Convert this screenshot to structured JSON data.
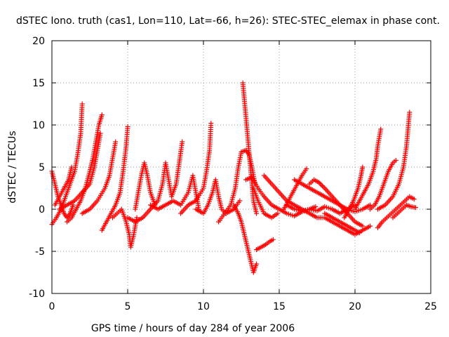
{
  "chart_data": {
    "type": "scatter",
    "title": "dSTEC Iono. truth (cas1, Lon=110, Lat=-66, h=26): STEC-STEC_elemax in phase cont.",
    "xlabel": "GPS time / hours of day 284 of year 2006",
    "ylabel": "dSTEC  / TECUs",
    "xlim": [
      0,
      25
    ],
    "ylim": [
      -10,
      20
    ],
    "xticks": [
      0,
      5,
      10,
      15,
      20,
      25
    ],
    "yticks": [
      -10,
      -5,
      0,
      5,
      10,
      15,
      20
    ],
    "grid": true,
    "marker": "plus",
    "color": "#ff0000",
    "arcs": [
      [
        [
          0.0,
          4.5
        ],
        [
          0.2,
          3.0
        ],
        [
          0.4,
          1.5
        ],
        [
          0.6,
          0.5
        ],
        [
          0.8,
          -0.5
        ],
        [
          1.0,
          -1.0
        ],
        [
          1.2,
          -0.5
        ],
        [
          1.4,
          0.5
        ]
      ],
      [
        [
          0.0,
          -1.8
        ],
        [
          0.3,
          -1.0
        ],
        [
          0.6,
          0.0
        ],
        [
          0.9,
          1.5
        ],
        [
          1.2,
          3.0
        ],
        [
          1.5,
          4.5
        ],
        [
          1.7,
          6.5
        ],
        [
          1.9,
          9.0
        ],
        [
          2.0,
          12.5
        ]
      ],
      [
        [
          0.2,
          0.5
        ],
        [
          0.5,
          1.5
        ],
        [
          0.8,
          2.5
        ],
        [
          1.1,
          3.5
        ],
        [
          1.3,
          5.0
        ]
      ],
      [
        [
          1.0,
          -1.5
        ],
        [
          1.3,
          -1.0
        ],
        [
          1.6,
          0.0
        ],
        [
          1.9,
          1.0
        ],
        [
          2.2,
          2.5
        ],
        [
          2.5,
          4.5
        ],
        [
          2.7,
          6.0
        ],
        [
          2.9,
          8.0
        ],
        [
          3.1,
          10.0
        ],
        [
          3.3,
          11.2
        ]
      ],
      [
        [
          0.5,
          0.0
        ],
        [
          1.0,
          0.5
        ],
        [
          1.5,
          1.0
        ],
        [
          2.0,
          2.0
        ],
        [
          2.5,
          3.0
        ],
        [
          2.8,
          5.0
        ],
        [
          3.0,
          7.0
        ],
        [
          3.2,
          9.0
        ]
      ],
      [
        [
          2.0,
          -0.5
        ],
        [
          2.5,
          0.0
        ],
        [
          3.0,
          1.0
        ],
        [
          3.5,
          2.5
        ],
        [
          3.8,
          4.0
        ],
        [
          4.0,
          6.0
        ],
        [
          4.2,
          8.0
        ]
      ],
      [
        [
          3.3,
          -2.5
        ],
        [
          3.6,
          -1.5
        ],
        [
          3.9,
          -0.5
        ],
        [
          4.2,
          0.5
        ],
        [
          4.5,
          2.0
        ],
        [
          4.7,
          4.5
        ],
        [
          4.9,
          7.5
        ],
        [
          5.0,
          9.8
        ]
      ],
      [
        [
          4.0,
          -1.0
        ],
        [
          4.3,
          -0.5
        ],
        [
          4.6,
          0.0
        ],
        [
          4.9,
          -1.5
        ],
        [
          5.1,
          -3.0
        ],
        [
          5.2,
          -4.5
        ],
        [
          5.4,
          -3.0
        ],
        [
          5.6,
          -1.0
        ]
      ],
      [
        [
          5.5,
          0.0
        ],
        [
          5.7,
          2.0
        ],
        [
          5.9,
          4.0
        ],
        [
          6.1,
          5.5
        ],
        [
          6.3,
          4.0
        ],
        [
          6.5,
          2.0
        ],
        [
          6.8,
          0.5
        ]
      ],
      [
        [
          5.0,
          -1.0
        ],
        [
          5.5,
          -1.5
        ],
        [
          6.0,
          -1.0
        ],
        [
          6.5,
          0.0
        ],
        [
          7.0,
          1.0
        ],
        [
          7.3,
          3.0
        ],
        [
          7.5,
          5.5
        ],
        [
          7.7,
          3.5
        ],
        [
          7.9,
          1.5
        ],
        [
          8.2,
          3.0
        ],
        [
          8.4,
          5.5
        ],
        [
          8.6,
          8.0
        ]
      ],
      [
        [
          6.5,
          0.5
        ],
        [
          7.0,
          0.0
        ],
        [
          7.5,
          0.5
        ],
        [
          8.0,
          1.0
        ],
        [
          8.5,
          0.5
        ],
        [
          9.0,
          2.0
        ],
        [
          9.3,
          4.0
        ],
        [
          9.5,
          2.0
        ],
        [
          9.7,
          0.0
        ]
      ],
      [
        [
          8.5,
          -0.5
        ],
        [
          9.0,
          0.5
        ],
        [
          9.5,
          1.0
        ],
        [
          10.0,
          2.5
        ],
        [
          10.2,
          4.5
        ],
        [
          10.4,
          7.0
        ],
        [
          10.5,
          10.2
        ]
      ],
      [
        [
          9.5,
          0.0
        ],
        [
          10.0,
          -0.5
        ],
        [
          10.3,
          0.5
        ],
        [
          10.6,
          2.0
        ],
        [
          10.8,
          3.5
        ],
        [
          11.0,
          1.5
        ],
        [
          11.2,
          0.0
        ],
        [
          11.5,
          -0.5
        ],
        [
          12.0,
          0.0
        ],
        [
          12.4,
          1.0
        ]
      ],
      [
        [
          11.0,
          -1.5
        ],
        [
          11.4,
          -0.5
        ],
        [
          11.8,
          0.5
        ],
        [
          12.1,
          2.5
        ],
        [
          12.3,
          5.0
        ],
        [
          12.5,
          6.8
        ],
        [
          12.8,
          7.0
        ],
        [
          13.0,
          6.5
        ],
        [
          13.2,
          5.0
        ],
        [
          13.4,
          3.0
        ]
      ],
      [
        [
          12.6,
          15.0
        ],
        [
          12.7,
          13.0
        ],
        [
          12.8,
          11.0
        ],
        [
          12.9,
          9.0
        ],
        [
          13.0,
          7.0
        ],
        [
          13.1,
          5.0
        ],
        [
          13.2,
          3.0
        ],
        [
          13.3,
          1.0
        ],
        [
          13.5,
          -0.5
        ]
      ],
      [
        [
          12.0,
          0.5
        ],
        [
          12.3,
          -0.5
        ],
        [
          12.5,
          -1.5
        ],
        [
          12.7,
          -3.0
        ],
        [
          12.9,
          -4.5
        ],
        [
          13.1,
          -6.0
        ],
        [
          13.3,
          -7.5
        ],
        [
          13.5,
          -6.5
        ]
      ],
      [
        [
          12.8,
          3.5
        ],
        [
          13.2,
          3.8
        ],
        [
          13.6,
          2.5
        ],
        [
          14.0,
          1.5
        ],
        [
          14.5,
          0.5
        ],
        [
          15.0,
          0.0
        ],
        [
          15.5,
          -0.5
        ],
        [
          16.0,
          -0.8
        ],
        [
          16.5,
          -0.3
        ],
        [
          17.0,
          0.0
        ],
        [
          17.5,
          -0.2
        ],
        [
          18.0,
          0.3
        ],
        [
          18.5,
          0.0
        ],
        [
          19.0,
          -0.5
        ],
        [
          19.5,
          0.0
        ],
        [
          20.0,
          0.5
        ]
      ],
      [
        [
          13.5,
          -4.8
        ],
        [
          13.8,
          -4.5
        ],
        [
          14.1,
          -4.2
        ],
        [
          14.4,
          -3.8
        ],
        [
          14.6,
          -3.6
        ]
      ],
      [
        [
          13.3,
          2.5
        ],
        [
          13.6,
          1.0
        ],
        [
          14.0,
          -0.5
        ],
        [
          14.5,
          -1.0
        ],
        [
          14.9,
          -0.5
        ]
      ],
      [
        [
          14.0,
          4.0
        ],
        [
          14.5,
          3.0
        ],
        [
          15.0,
          2.0
        ],
        [
          15.5,
          1.0
        ],
        [
          16.0,
          0.5
        ],
        [
          16.5,
          0.0
        ],
        [
          17.0,
          -0.5
        ],
        [
          17.5,
          -1.0
        ],
        [
          18.0,
          -1.0
        ],
        [
          18.5,
          -1.5
        ],
        [
          19.0,
          -2.0
        ],
        [
          19.5,
          -2.5
        ],
        [
          20.0,
          -3.0
        ],
        [
          20.5,
          -2.5
        ],
        [
          21.0,
          -2.0
        ]
      ],
      [
        [
          15.3,
          0.0
        ],
        [
          15.6,
          1.0
        ],
        [
          15.9,
          2.0
        ],
        [
          16.2,
          3.0
        ],
        [
          16.5,
          4.0
        ],
        [
          16.8,
          4.8
        ]
      ],
      [
        [
          15.5,
          0.5
        ],
        [
          16.0,
          0.0
        ],
        [
          16.5,
          -0.2
        ],
        [
          17.0,
          0.0
        ],
        [
          17.4,
          0.3
        ]
      ],
      [
        [
          16.0,
          3.5
        ],
        [
          16.5,
          3.0
        ],
        [
          17.0,
          2.5
        ],
        [
          17.5,
          2.0
        ],
        [
          18.0,
          1.5
        ],
        [
          18.5,
          1.0
        ],
        [
          19.0,
          0.5
        ],
        [
          19.5,
          0.0
        ],
        [
          20.0,
          -0.3
        ],
        [
          20.5,
          0.0
        ],
        [
          21.0,
          0.5
        ]
      ],
      [
        [
          17.0,
          3.0
        ],
        [
          17.3,
          3.5
        ],
        [
          17.6,
          3.2
        ],
        [
          18.0,
          2.5
        ],
        [
          18.5,
          1.5
        ],
        [
          19.0,
          0.5
        ],
        [
          19.5,
          -0.5
        ],
        [
          20.0,
          -1.5
        ],
        [
          20.5,
          -2.0
        ]
      ],
      [
        [
          18.0,
          -0.5
        ],
        [
          18.5,
          -1.0
        ],
        [
          19.0,
          -1.5
        ],
        [
          19.5,
          -2.0
        ],
        [
          20.0,
          -2.5
        ],
        [
          20.3,
          -2.8
        ]
      ],
      [
        [
          19.3,
          -1.0
        ],
        [
          19.6,
          0.0
        ],
        [
          19.9,
          1.0
        ],
        [
          20.2,
          2.5
        ],
        [
          20.4,
          4.0
        ],
        [
          20.5,
          5.0
        ]
      ],
      [
        [
          20.0,
          0.0
        ],
        [
          20.3,
          1.0
        ],
        [
          20.6,
          2.0
        ],
        [
          20.9,
          3.0
        ],
        [
          21.2,
          4.5
        ],
        [
          21.4,
          6.0
        ],
        [
          21.5,
          7.5
        ],
        [
          21.7,
          9.5
        ]
      ],
      [
        [
          21.0,
          0.0
        ],
        [
          21.3,
          0.5
        ],
        [
          21.6,
          1.5
        ],
        [
          21.9,
          3.0
        ],
        [
          22.2,
          4.5
        ],
        [
          22.5,
          5.5
        ],
        [
          22.7,
          5.8
        ]
      ],
      [
        [
          21.5,
          -2.2
        ],
        [
          21.8,
          -1.5
        ],
        [
          22.1,
          -1.0
        ],
        [
          22.4,
          -0.5
        ],
        [
          22.7,
          0.0
        ],
        [
          23.0,
          0.5
        ],
        [
          23.3,
          1.0
        ],
        [
          23.6,
          1.5
        ],
        [
          23.9,
          1.2
        ]
      ],
      [
        [
          21.5,
          0.0
        ],
        [
          22.0,
          0.5
        ],
        [
          22.5,
          1.5
        ],
        [
          22.9,
          3.0
        ],
        [
          23.2,
          5.0
        ],
        [
          23.4,
          7.5
        ],
        [
          23.5,
          9.5
        ],
        [
          23.6,
          11.5
        ]
      ],
      [
        [
          22.5,
          -1.0
        ],
        [
          22.8,
          -0.5
        ],
        [
          23.1,
          0.0
        ],
        [
          23.4,
          0.5
        ],
        [
          23.7,
          0.3
        ],
        [
          24.0,
          0.2
        ]
      ]
    ]
  }
}
